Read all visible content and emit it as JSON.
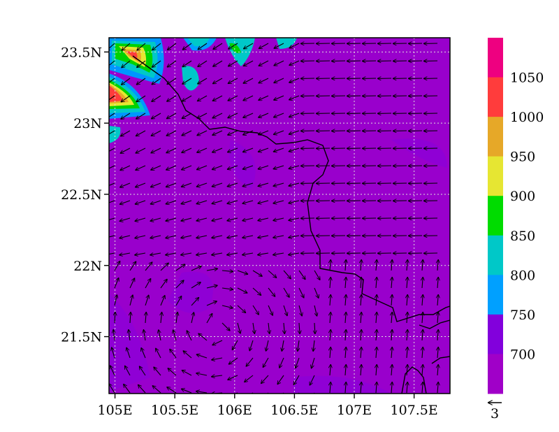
{
  "map": {
    "lat_labels": [
      "23.5N",
      "23N",
      "22.5N",
      "22N",
      "21.5N"
    ],
    "lon_labels": [
      "105E",
      "105.5E",
      "106E",
      "106.5E",
      "107E",
      "107.5E"
    ],
    "lat_values": [
      23.5,
      23.0,
      22.5,
      22.0,
      21.5
    ],
    "lon_values": [
      105.0,
      105.5,
      106.0,
      106.5,
      107.0,
      107.5
    ],
    "lon_range": [
      104.95,
      107.8
    ],
    "lat_range": [
      21.1,
      23.6
    ],
    "background_color": "#9900cc",
    "grid": true,
    "vector_reference": {
      "label": "3"
    }
  },
  "colorbar": {
    "labels": [
      "1050",
      "1000",
      "950",
      "900",
      "850",
      "800",
      "750",
      "700"
    ],
    "colors": [
      "#ee0080",
      "#ff3c3c",
      "#e6a828",
      "#e6e632",
      "#00dc00",
      "#00c8c8",
      "#00a0ff",
      "#8200dc",
      "#a000c8"
    ]
  }
}
